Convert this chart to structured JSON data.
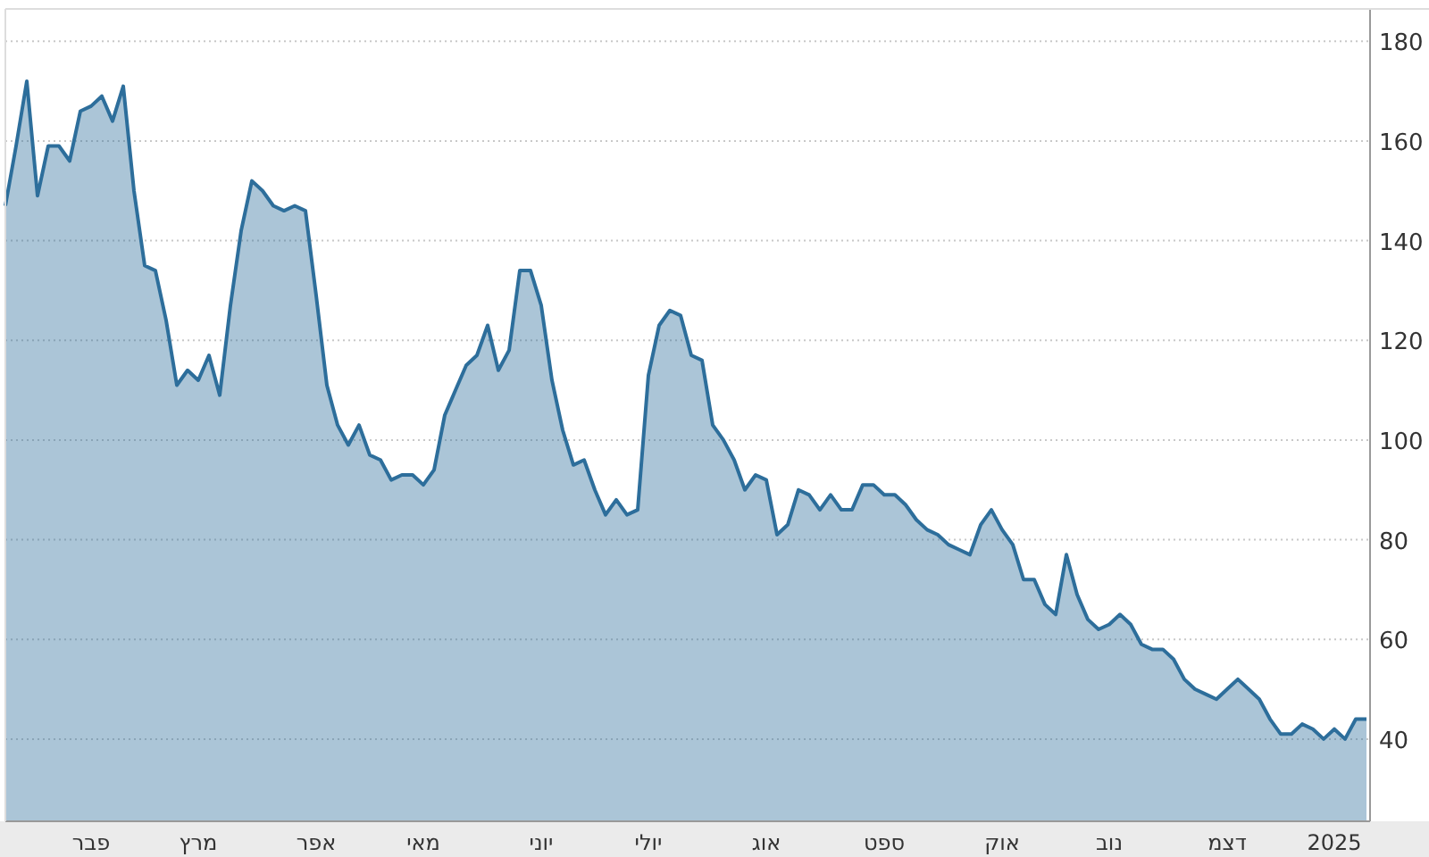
{
  "chart_data": {
    "type": "area",
    "color": "#2d6e9b",
    "grid": "y",
    "ylim": [
      23.5,
      186.5
    ],
    "yticks": [
      40,
      60,
      80,
      100,
      120,
      140,
      160,
      180
    ],
    "categories": [
      null,
      null,
      null,
      null,
      null,
      null,
      null,
      null,
      "פבר",
      null,
      null,
      null,
      null,
      null,
      null,
      null,
      null,
      null,
      "מרץ",
      null,
      null,
      null,
      null,
      null,
      null,
      null,
      null,
      null,
      null,
      "אפר",
      null,
      null,
      null,
      null,
      null,
      null,
      null,
      null,
      null,
      "מאי",
      null,
      null,
      null,
      null,
      null,
      null,
      null,
      null,
      null,
      null,
      "יוני",
      null,
      null,
      null,
      null,
      null,
      null,
      null,
      null,
      null,
      "יולי",
      null,
      null,
      null,
      null,
      null,
      null,
      null,
      null,
      null,
      null,
      "אוג",
      null,
      null,
      null,
      null,
      null,
      null,
      null,
      null,
      null,
      null,
      "ספט",
      null,
      null,
      null,
      null,
      null,
      null,
      null,
      null,
      null,
      null,
      "אוק",
      null,
      null,
      null,
      null,
      null,
      null,
      null,
      null,
      null,
      "נוב",
      null,
      null,
      null,
      null,
      null,
      null,
      null,
      null,
      null,
      null,
      "דצמ",
      null,
      null,
      null,
      null,
      null,
      null,
      null,
      null,
      null,
      "2025",
      null,
      null,
      null
    ],
    "values": [
      147,
      159,
      172,
      149,
      159,
      159,
      156,
      166,
      167,
      169,
      164,
      171,
      150,
      135,
      134,
      124,
      111,
      114,
      112,
      117,
      109,
      127,
      142,
      152,
      150,
      147,
      146,
      147,
      146,
      129,
      111,
      103,
      99,
      103,
      97,
      96,
      92,
      93,
      93,
      91,
      94,
      105,
      110,
      115,
      117,
      123,
      114,
      118,
      134,
      134,
      127,
      112,
      102,
      95,
      96,
      90,
      85,
      88,
      85,
      86,
      113,
      123,
      126,
      125,
      117,
      116,
      103,
      100,
      96,
      90,
      93,
      92,
      81,
      83,
      90,
      89,
      86,
      89,
      86,
      86,
      91,
      91,
      89,
      89,
      87,
      84,
      82,
      81,
      79,
      78,
      77,
      83,
      86,
      82,
      79,
      72,
      72,
      67,
      65,
      77,
      69,
      64,
      62,
      63,
      65,
      63,
      59,
      58,
      58,
      56,
      52,
      50,
      49,
      48,
      50,
      52,
      50,
      48,
      44,
      41,
      41,
      43,
      42,
      40,
      42,
      40,
      44,
      44
    ]
  }
}
